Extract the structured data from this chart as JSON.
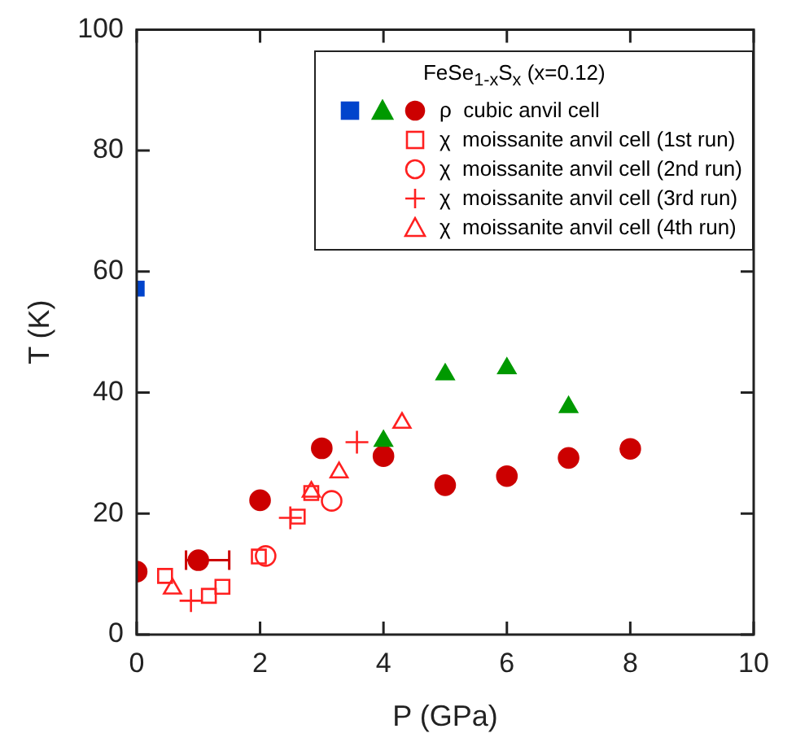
{
  "chart_data": {
    "type": "scatter",
    "xlabel": "P (GPa)",
    "ylabel": "T (K)",
    "legend_title": "FeSe$_{1-x}$S$_{x}$ (x=0.12)",
    "xlim": [
      0,
      10
    ],
    "xticks": [
      0,
      2,
      4,
      6,
      8,
      10
    ],
    "ylim": [
      0,
      100
    ],
    "yticks": [
      0,
      20,
      40,
      60,
      80,
      100
    ],
    "grid": false,
    "legend": "top right",
    "series": [
      {
        "color": "#0044cc",
        "marker": "square",
        "x": [
          0
        ],
        "values": [
          57.2
        ]
      },
      {
        "color": "#009900",
        "marker": "triangle",
        "x": [
          4,
          5,
          6,
          7
        ],
        "values": [
          32,
          43,
          44,
          37.6
        ]
      },
      {
        "name": "ρ  cubic anvil cell",
        "color": "#cc0000",
        "marker": "circle",
        "x": [
          0,
          1,
          2,
          3,
          4,
          5,
          6,
          7,
          8
        ],
        "values": [
          10.4,
          12.3,
          22.2,
          30.8,
          29.5,
          24.7,
          26.2,
          29.2,
          30.7
        ],
        "xerrors": [
          null,
          [
            0.8,
            1.5
          ],
          null,
          null,
          null,
          null,
          null,
          null,
          null
        ]
      },
      {
        "name": "χ  moissanite anvil cell (1st run)",
        "color": "#ff2020",
        "marker": "square",
        "x": [
          0.46,
          1.17,
          1.39,
          1.98,
          2.61,
          2.83
        ],
        "values": [
          9.7,
          6.4,
          7.9,
          12.9,
          19.5,
          23.4
        ]
      },
      {
        "name": "χ  moissanite anvil cell (2nd run)",
        "color": "#ff2020",
        "marker": "circle",
        "x": [
          2.09,
          3.16
        ],
        "values": [
          13,
          22.1
        ]
      },
      {
        "name": "χ  moissanite anvil cell (3rd run)",
        "color": "#ff2020",
        "marker": "cross",
        "x": [
          0.88,
          2.49,
          3.57
        ],
        "values": [
          5.6,
          19.3,
          31.8
        ]
      },
      {
        "name": "χ  moissanite anvil cell (4th run)",
        "color": "#ff2020",
        "marker": "triangle",
        "x": [
          0.58,
          2.83,
          3.28,
          4.3
        ],
        "values": [
          7.6,
          23.6,
          26.8,
          35
        ]
      }
    ]
  }
}
